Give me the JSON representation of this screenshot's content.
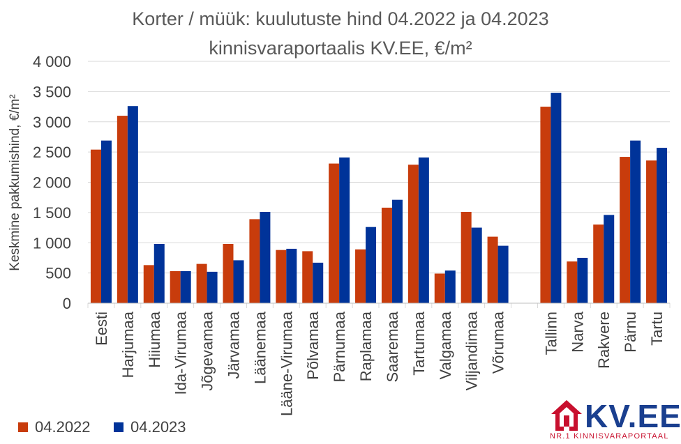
{
  "chart_data": {
    "type": "bar",
    "title": "Korter / müük: kuulutuste hind 04.2022 ja 04.2023",
    "subtitle": "kinnisvaraportaalis KV.EE, €/m²",
    "ylabel": "Keskmine pakkumishind, €/m²",
    "xlabel": "",
    "ylim": [
      0,
      4000
    ],
    "yticks": [
      "0",
      "500",
      "1 000",
      "1 500",
      "2 000",
      "2 500",
      "3 000",
      "3 500",
      "4 000"
    ],
    "ytick_values": [
      0,
      500,
      1000,
      1500,
      2000,
      2500,
      3000,
      3500,
      4000
    ],
    "grid": true,
    "legend_position": "bottom-left",
    "categories": [
      "Eesti",
      "Harjumaa",
      "Hiiumaa",
      "Ida-Virumaa",
      "Jõgevamaa",
      "Järvamaa",
      "Läänemaa",
      "Lääne-Virumaa",
      "Põlvamaa",
      "Pärnumaa",
      "Raplamaa",
      "Saaremaa",
      "Tartumaa",
      "Valgamaa",
      "Viljandimaa",
      "Võrumaa",
      "",
      "Tallinn",
      "Narva",
      "Rakvere",
      "Pärnu",
      "Tartu"
    ],
    "series": [
      {
        "name": "04.2022",
        "color": "#c83c0c",
        "values": [
          2540,
          3100,
          630,
          530,
          650,
          980,
          1390,
          880,
          860,
          2310,
          890,
          1580,
          2290,
          490,
          1510,
          1100,
          null,
          3250,
          690,
          1300,
          2420,
          2360
        ]
      },
      {
        "name": "04.2023",
        "color": "#003399",
        "values": [
          2690,
          3260,
          980,
          530,
          520,
          710,
          1510,
          900,
          670,
          2410,
          1260,
          1710,
          2410,
          540,
          1250,
          950,
          null,
          3480,
          750,
          1460,
          2690,
          2570
        ]
      }
    ]
  },
  "logo": {
    "text": "KV.EE",
    "tagline": "NR.1 KINNISVARAPORTAAL",
    "brand_blue": "#1a3f8f",
    "brand_red": "#c8102e"
  },
  "colors": {
    "axis_text": "#404040",
    "gridline": "#d9d9d9",
    "title": "#595959"
  }
}
